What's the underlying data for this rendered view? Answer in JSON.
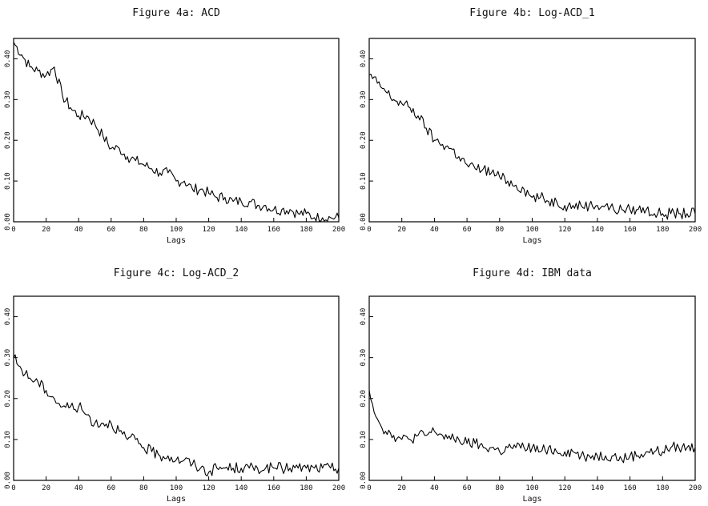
{
  "chart_data": [
    {
      "type": "line",
      "title": "Figure 4a: ACD",
      "xlabel": "Lags",
      "ylabel": "",
      "xlim": [
        0,
        200
      ],
      "ylim": [
        0,
        0.45
      ],
      "xticks": [
        "0",
        "20",
        "40",
        "60",
        "80",
        "100",
        "120",
        "140",
        "160",
        "180",
        "200"
      ],
      "yticks": [
        "0.00",
        "0.10",
        "0.20",
        "0.30",
        "0.40"
      ],
      "grid": false,
      "series": [
        {
          "x": [
            0,
            5,
            10,
            15,
            20,
            25,
            30,
            35,
            40,
            45,
            50,
            55,
            60,
            65,
            70,
            75,
            80,
            85,
            90,
            95,
            100,
            105,
            110,
            115,
            120,
            125,
            130,
            135,
            140,
            145,
            150,
            155,
            160,
            165,
            170,
            175,
            180,
            185,
            190,
            195,
            200
          ],
          "values": [
            0.44,
            0.41,
            0.38,
            0.37,
            0.36,
            0.38,
            0.31,
            0.28,
            0.26,
            0.26,
            0.24,
            0.21,
            0.18,
            0.18,
            0.16,
            0.15,
            0.14,
            0.13,
            0.12,
            0.12,
            0.1,
            0.1,
            0.08,
            0.08,
            0.07,
            0.06,
            0.06,
            0.05,
            0.05,
            0.05,
            0.04,
            0.04,
            0.03,
            0.03,
            0.03,
            0.02,
            0.02,
            0.01,
            0.01,
            0.01,
            0.01
          ]
        }
      ]
    },
    {
      "type": "line",
      "title": "Figure 4b: Log-ACD_1",
      "xlabel": "Lags",
      "ylabel": "",
      "xlim": [
        0,
        200
      ],
      "ylim": [
        0,
        0.45
      ],
      "xticks": [
        "0",
        "20",
        "40",
        "60",
        "80",
        "100",
        "120",
        "140",
        "160",
        "180",
        "200"
      ],
      "yticks": [
        "0.00",
        "0.10",
        "0.20",
        "0.30",
        "0.40"
      ],
      "grid": false,
      "series": [
        {
          "x": [
            0,
            5,
            10,
            15,
            20,
            25,
            30,
            35,
            40,
            45,
            50,
            55,
            60,
            65,
            70,
            75,
            80,
            85,
            90,
            95,
            100,
            105,
            110,
            115,
            120,
            125,
            130,
            135,
            140,
            145,
            150,
            155,
            160,
            165,
            170,
            175,
            180,
            185,
            190,
            195,
            200
          ],
          "values": [
            0.36,
            0.34,
            0.32,
            0.3,
            0.29,
            0.28,
            0.26,
            0.23,
            0.2,
            0.19,
            0.18,
            0.16,
            0.14,
            0.13,
            0.13,
            0.12,
            0.11,
            0.1,
            0.09,
            0.08,
            0.06,
            0.06,
            0.05,
            0.05,
            0.04,
            0.04,
            0.04,
            0.04,
            0.04,
            0.04,
            0.03,
            0.03,
            0.03,
            0.03,
            0.03,
            0.02,
            0.02,
            0.02,
            0.02,
            0.02,
            0.02
          ]
        }
      ]
    },
    {
      "type": "line",
      "title": "Figure 4c: Log-ACD_2",
      "xlabel": "Lags",
      "ylabel": "",
      "xlim": [
        0,
        200
      ],
      "ylim": [
        0,
        0.45
      ],
      "xticks": [
        "0",
        "20",
        "40",
        "60",
        "80",
        "100",
        "120",
        "140",
        "160",
        "180",
        "200"
      ],
      "yticks": [
        "0.00",
        "0.10",
        "0.20",
        "0.30",
        "0.40"
      ],
      "grid": false,
      "series": [
        {
          "x": [
            0,
            5,
            10,
            15,
            20,
            25,
            30,
            35,
            40,
            45,
            50,
            55,
            60,
            65,
            70,
            75,
            80,
            85,
            90,
            95,
            100,
            105,
            110,
            115,
            120,
            125,
            130,
            135,
            140,
            145,
            150,
            155,
            160,
            165,
            170,
            175,
            180,
            185,
            190,
            195,
            200
          ],
          "values": [
            0.3,
            0.27,
            0.25,
            0.24,
            0.22,
            0.2,
            0.18,
            0.18,
            0.18,
            0.16,
            0.14,
            0.14,
            0.14,
            0.12,
            0.1,
            0.1,
            0.08,
            0.07,
            0.06,
            0.06,
            0.05,
            0.05,
            0.04,
            0.03,
            0.02,
            0.03,
            0.03,
            0.03,
            0.03,
            0.03,
            0.03,
            0.03,
            0.03,
            0.03,
            0.03,
            0.03,
            0.03,
            0.03,
            0.03,
            0.03,
            0.03
          ]
        }
      ]
    },
    {
      "type": "line",
      "title": "Figure 4d: IBM data",
      "xlabel": "Lags",
      "ylabel": "",
      "xlim": [
        0,
        200
      ],
      "ylim": [
        0,
        0.45
      ],
      "xticks": [
        "0",
        "20",
        "40",
        "60",
        "80",
        "100",
        "120",
        "140",
        "160",
        "180",
        "200"
      ],
      "yticks": [
        "0.00",
        "0.10",
        "0.20",
        "0.30",
        "0.40"
      ],
      "grid": false,
      "series": [
        {
          "x": [
            0,
            5,
            10,
            15,
            20,
            25,
            30,
            35,
            40,
            45,
            50,
            55,
            60,
            65,
            70,
            75,
            80,
            85,
            90,
            95,
            100,
            105,
            110,
            115,
            120,
            125,
            130,
            135,
            140,
            145,
            150,
            155,
            160,
            165,
            170,
            175,
            180,
            185,
            190,
            195,
            200
          ],
          "values": [
            0.22,
            0.15,
            0.12,
            0.11,
            0.1,
            0.1,
            0.11,
            0.11,
            0.12,
            0.11,
            0.1,
            0.1,
            0.09,
            0.09,
            0.08,
            0.08,
            0.07,
            0.08,
            0.08,
            0.08,
            0.08,
            0.07,
            0.08,
            0.07,
            0.07,
            0.07,
            0.06,
            0.06,
            0.06,
            0.06,
            0.06,
            0.05,
            0.06,
            0.06,
            0.07,
            0.07,
            0.07,
            0.08,
            0.08,
            0.08,
            0.08
          ]
        }
      ]
    }
  ]
}
